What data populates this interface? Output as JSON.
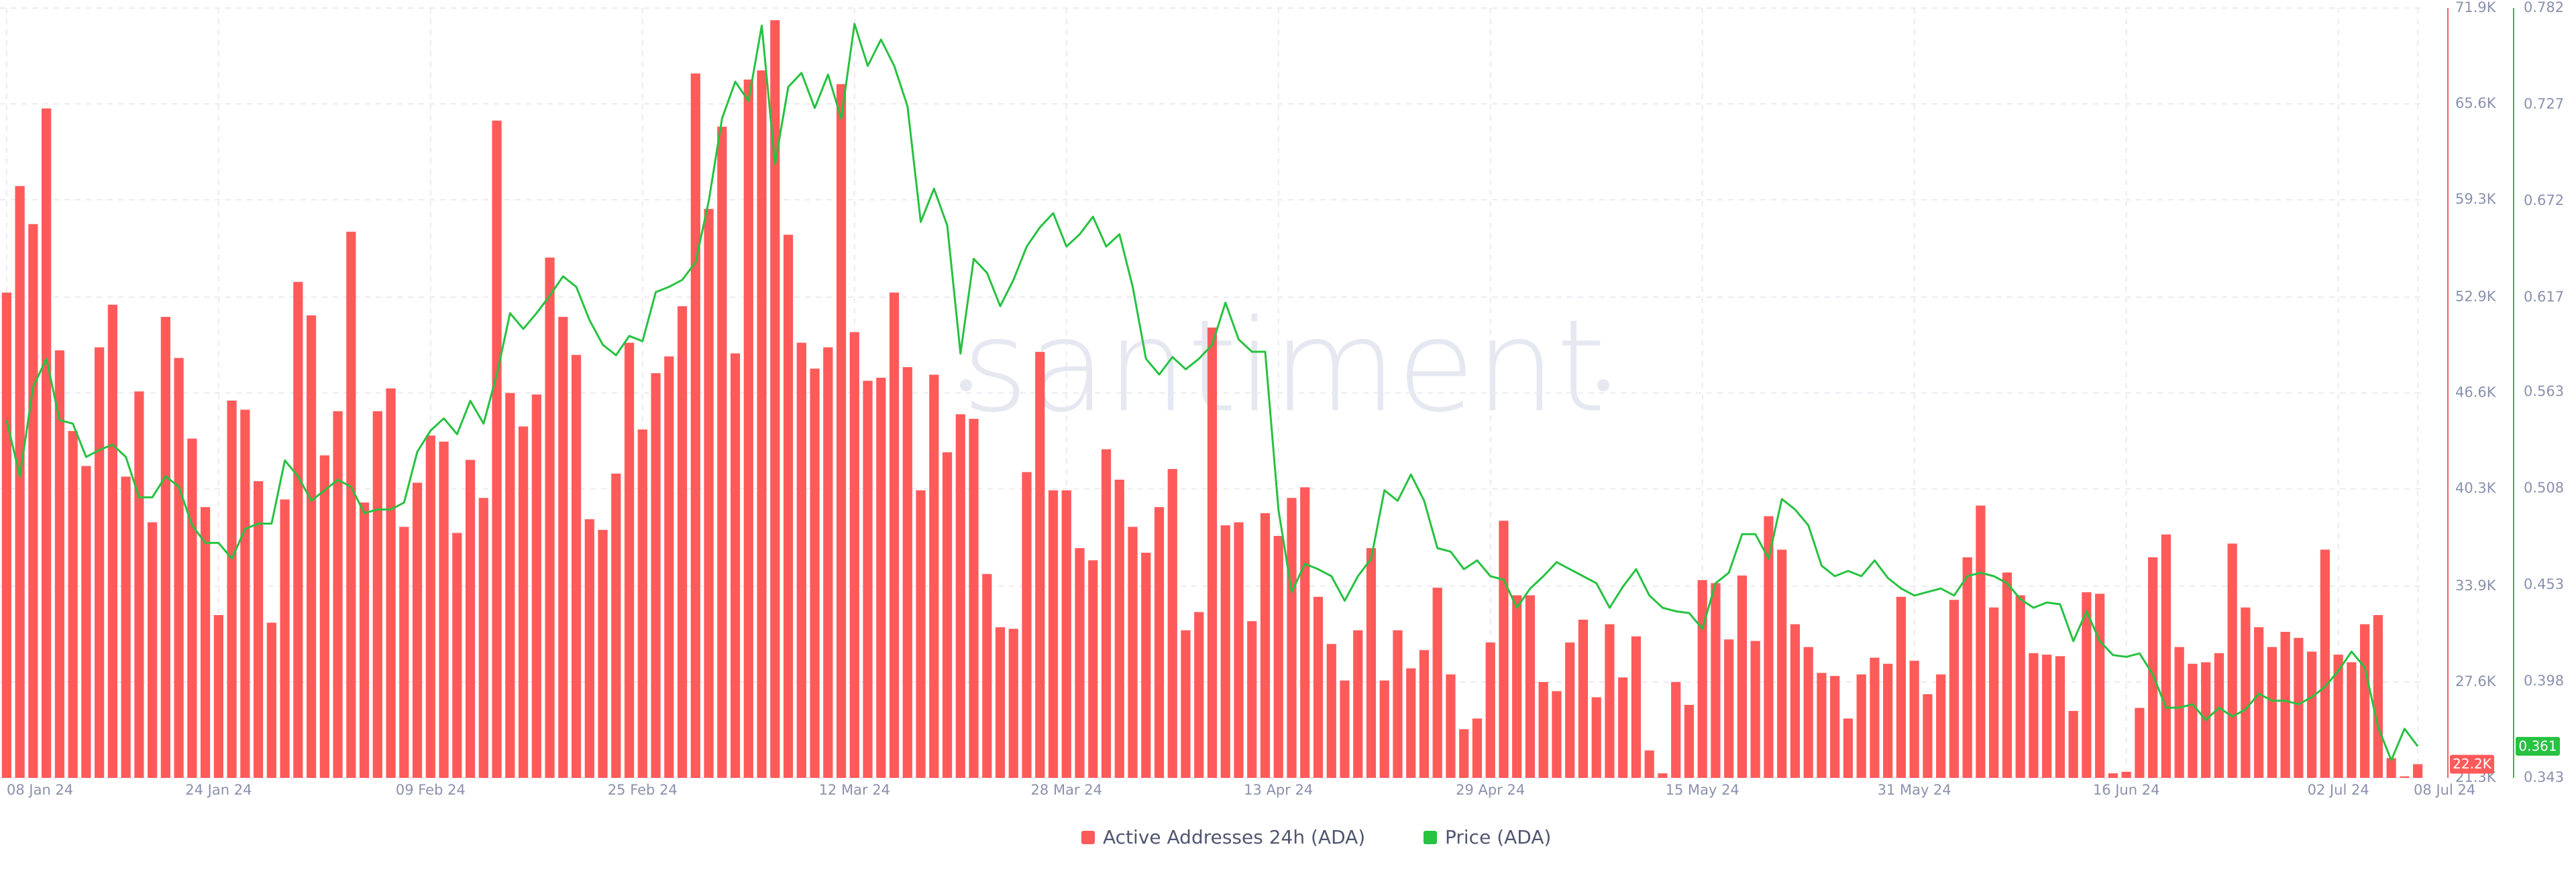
{
  "chart_data": {
    "type": "bar",
    "watermark": "santiment",
    "categories": [
      "08 Jan 24",
      null,
      null,
      null,
      null,
      null,
      null,
      null,
      null,
      null,
      null,
      null,
      null,
      null,
      null,
      null,
      "24 Jan 24",
      null,
      null,
      null,
      null,
      null,
      null,
      null,
      null,
      null,
      null,
      null,
      null,
      null,
      null,
      null,
      "09 Feb 24",
      null,
      null,
      null,
      null,
      null,
      null,
      null,
      null,
      null,
      null,
      null,
      null,
      null,
      null,
      null,
      "25 Feb 24",
      null,
      null,
      null,
      null,
      null,
      null,
      null,
      null,
      null,
      null,
      null,
      null,
      null,
      null,
      null,
      "12 Mar 24",
      null,
      null,
      null,
      null,
      null,
      null,
      null,
      null,
      null,
      null,
      null,
      null,
      null,
      null,
      null,
      "28 Mar 24",
      null,
      null,
      null,
      null,
      null,
      null,
      null,
      null,
      null,
      null,
      null,
      null,
      null,
      null,
      null,
      "13 Apr 24",
      null,
      null,
      null,
      null,
      null,
      null,
      null,
      null,
      null,
      null,
      null,
      null,
      null,
      null,
      null,
      "29 Apr 24",
      null,
      null,
      null,
      null,
      null,
      null,
      null,
      null,
      null,
      null,
      null,
      null,
      null,
      null,
      null,
      "15 May 24",
      null,
      null,
      null,
      null,
      null,
      null,
      null,
      null,
      null,
      null,
      null,
      null,
      null,
      null,
      null,
      "31 May 24",
      null,
      null,
      null,
      null,
      null,
      null,
      null,
      null,
      null,
      null,
      null,
      null,
      null,
      null,
      null,
      "16 Jun 24",
      null,
      null,
      null,
      null,
      null,
      null,
      null,
      null,
      null,
      null,
      null,
      null,
      null,
      null,
      null,
      "02 Jul 24",
      null,
      null,
      null,
      null,
      null,
      "08 Jul 24"
    ],
    "series": [
      {
        "name": "Active Addresses 24h (ADA)",
        "type": "bar",
        "axis": "y",
        "color": "#ff5a5a",
        "last_label": "22.2K",
        "values": [
          53200,
          60200,
          57700,
          65300,
          49400,
          44100,
          41800,
          49600,
          52400,
          41100,
          46700,
          38100,
          51600,
          48900,
          43600,
          39100,
          32000,
          46100,
          45500,
          40800,
          31500,
          39600,
          53900,
          51700,
          42500,
          45400,
          57200,
          39400,
          45400,
          46900,
          37800,
          40700,
          43800,
          43400,
          37400,
          42200,
          39700,
          64500,
          46600,
          44400,
          46500,
          55500,
          51600,
          49100,
          38300,
          37600,
          41300,
          49900,
          44200,
          47900,
          49000,
          52300,
          67600,
          58700,
          64100,
          49200,
          67200,
          67800,
          71100,
          57000,
          49900,
          48200,
          49600,
          66900,
          50600,
          47400,
          47600,
          53200,
          48300,
          40200,
          47800,
          42700,
          45200,
          44900,
          34700,
          31200,
          31100,
          41400,
          49300,
          40200,
          40200,
          36400,
          35600,
          42900,
          40900,
          37800,
          36100,
          39100,
          41600,
          31000,
          32200,
          50900,
          37900,
          38100,
          31600,
          38700,
          37200,
          39700,
          40400,
          33200,
          30100,
          27700,
          31000,
          36400,
          27700,
          31000,
          28500,
          29700,
          33800,
          28100,
          24500,
          25200,
          30200,
          38200,
          33300,
          33300,
          27600,
          27000,
          30200,
          31700,
          26600,
          31400,
          27900,
          30600,
          23100,
          21600,
          27600,
          26100,
          34300,
          34100,
          30400,
          34600,
          30300,
          38500,
          36300,
          31400,
          29900,
          28200,
          28000,
          25200,
          28100,
          29200,
          28800,
          33200,
          29000,
          26800,
          28100,
          33000,
          35800,
          39200,
          32500,
          34800,
          33300,
          29500,
          29400,
          29300,
          25700,
          33500,
          33400,
          21600,
          21700,
          25900,
          35800,
          37300,
          29900,
          28800,
          28900,
          29500,
          36700,
          32500,
          31200,
          29900,
          30900,
          30500,
          29600,
          36300,
          29400,
          28900,
          31400,
          32000,
          22600,
          21400,
          22200
        ]
      },
      {
        "name": "Price (ADA)",
        "type": "line",
        "axis": "y2",
        "color": "#26c240",
        "last_label": "0.361",
        "values": [
          0.547,
          0.515,
          0.566,
          0.582,
          0.547,
          0.545,
          0.526,
          0.53,
          0.533,
          0.526,
          0.503,
          0.503,
          0.515,
          0.509,
          0.487,
          0.477,
          0.477,
          0.468,
          0.485,
          0.488,
          0.488,
          0.524,
          0.515,
          0.501,
          0.507,
          0.513,
          0.509,
          0.494,
          0.496,
          0.496,
          0.5,
          0.529,
          0.541,
          0.548,
          0.539,
          0.558,
          0.545,
          0.573,
          0.608,
          0.599,
          0.608,
          0.618,
          0.629,
          0.623,
          0.604,
          0.59,
          0.584,
          0.595,
          0.592,
          0.62,
          0.623,
          0.627,
          0.637,
          0.672,
          0.719,
          0.74,
          0.729,
          0.772,
          0.693,
          0.737,
          0.745,
          0.725,
          0.744,
          0.719,
          0.773,
          0.749,
          0.764,
          0.749,
          0.726,
          0.66,
          0.679,
          0.658,
          0.585,
          0.639,
          0.631,
          0.612,
          0.627,
          0.646,
          0.657,
          0.665,
          0.646,
          0.653,
          0.663,
          0.646,
          0.653,
          0.623,
          0.582,
          0.573,
          0.583,
          0.576,
          0.582,
          0.59,
          0.614,
          0.593,
          0.586,
          0.586,
          0.496,
          0.449,
          0.465,
          0.462,
          0.458,
          0.444,
          0.458,
          0.468,
          0.507,
          0.501,
          0.516,
          0.501,
          0.474,
          0.472,
          0.462,
          0.467,
          0.458,
          0.456,
          0.44,
          0.451,
          0.458,
          0.466,
          0.462,
          0.458,
          0.454,
          0.44,
          0.452,
          0.462,
          0.447,
          0.44,
          0.438,
          0.437,
          0.428,
          0.454,
          0.46,
          0.482,
          0.482,
          0.468,
          0.502,
          0.496,
          0.487,
          0.464,
          0.458,
          0.461,
          0.458,
          0.467,
          0.457,
          0.451,
          0.447,
          0.449,
          0.451,
          0.447,
          0.458,
          0.46,
          0.458,
          0.454,
          0.445,
          0.44,
          0.443,
          0.442,
          0.421,
          0.438,
          0.421,
          0.413,
          0.412,
          0.414,
          0.402,
          0.383,
          0.383,
          0.385,
          0.376,
          0.383,
          0.378,
          0.382,
          0.391,
          0.387,
          0.387,
          0.385,
          0.389,
          0.395,
          0.404,
          0.415,
          0.406,
          0.372,
          0.353,
          0.371,
          0.361
        ]
      }
    ],
    "ylim": [
      21300,
      71900
    ],
    "yticks": [
      {
        "value": 21300,
        "label": "21.3K"
      },
      {
        "value": 27600,
        "label": "27.6K"
      },
      {
        "value": 33900,
        "label": "33.9K"
      },
      {
        "value": 40300,
        "label": "40.3K"
      },
      {
        "value": 46600,
        "label": "46.6K"
      },
      {
        "value": 52900,
        "label": "52.9K"
      },
      {
        "value": 59300,
        "label": "59.3K"
      },
      {
        "value": 65600,
        "label": "65.6K"
      },
      {
        "value": 71900,
        "label": "71.9K"
      }
    ],
    "y2lim": [
      0.343,
      0.782
    ],
    "y2ticks": [
      0.343,
      0.398,
      0.453,
      0.508,
      0.563,
      0.617,
      0.672,
      0.727,
      0.782
    ],
    "grid": true,
    "legend": "bottom"
  }
}
